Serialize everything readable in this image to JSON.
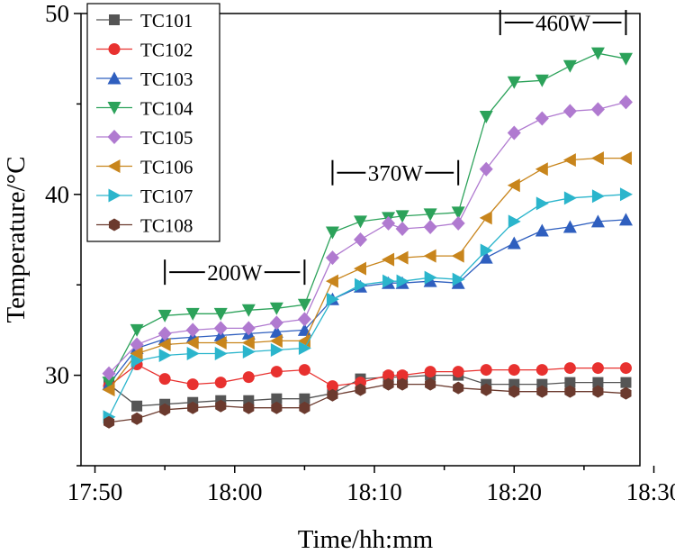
{
  "chart_data": {
    "type": "line",
    "title": "",
    "xlabel": "Time/hh:mm",
    "ylabel": "Temperature/°C",
    "xlim": [
      -1,
      39
    ],
    "ylim": [
      25,
      50
    ],
    "x_ticks": [
      0,
      10,
      20,
      30,
      40
    ],
    "x_tick_labels": [
      "17:50",
      "18:00",
      "18:10",
      "18:20",
      "18:30"
    ],
    "y_ticks": [
      30,
      40,
      50
    ],
    "y_tick_labels": [
      "30",
      "40",
      "50"
    ],
    "legend_position": "top-left",
    "annotations": [
      {
        "text": "200W",
        "x_from": 5,
        "x_to": 15,
        "y": 35.7
      },
      {
        "text": "370W",
        "x_from": 17,
        "x_to": 26,
        "y": 41.2
      },
      {
        "text": "460W",
        "x_from": 29,
        "x_to": 38,
        "y": 49.5
      }
    ],
    "x": [
      1,
      3,
      5,
      7,
      9,
      11,
      13,
      15,
      17,
      19,
      21,
      22,
      24,
      26,
      28,
      30,
      32,
      34,
      36,
      38
    ],
    "series": [
      {
        "name": "TC101",
        "color": "#555555",
        "marker": "square",
        "values": [
          29.5,
          28.3,
          28.4,
          28.5,
          28.6,
          28.6,
          28.7,
          28.7,
          29.0,
          29.8,
          29.9,
          29.9,
          30.0,
          30.0,
          29.5,
          29.5,
          29.5,
          29.6,
          29.6,
          29.6
        ]
      },
      {
        "name": "TC102",
        "color": "#e8312f",
        "marker": "circle",
        "values": [
          29.4,
          30.6,
          29.8,
          29.5,
          29.6,
          29.9,
          30.2,
          30.3,
          29.4,
          29.6,
          30.0,
          30.0,
          30.2,
          30.2,
          30.3,
          30.3,
          30.3,
          30.4,
          30.4,
          30.4
        ]
      },
      {
        "name": "TC103",
        "color": "#2f5fbf",
        "marker": "triangle-up",
        "values": [
          29.5,
          31.5,
          32.0,
          32.1,
          32.2,
          32.3,
          32.4,
          32.5,
          34.2,
          34.9,
          35.1,
          35.1,
          35.2,
          35.1,
          36.5,
          37.3,
          38.0,
          38.2,
          38.5,
          38.6
        ]
      },
      {
        "name": "TC104",
        "color": "#2ca25a",
        "marker": "triangle-down",
        "values": [
          29.6,
          32.5,
          33.3,
          33.4,
          33.4,
          33.6,
          33.7,
          33.9,
          37.9,
          38.5,
          38.7,
          38.8,
          38.9,
          39.0,
          44.3,
          46.2,
          46.3,
          47.1,
          47.8,
          47.5
        ]
      },
      {
        "name": "TC105",
        "color": "#b07ad0",
        "marker": "diamond",
        "values": [
          30.1,
          31.7,
          32.3,
          32.5,
          32.6,
          32.6,
          32.9,
          33.1,
          36.5,
          37.5,
          38.4,
          38.1,
          38.2,
          38.4,
          41.4,
          43.4,
          44.2,
          44.6,
          44.7,
          45.1
        ]
      },
      {
        "name": "TC106",
        "color": "#c8851c",
        "marker": "triangle-left",
        "values": [
          29.2,
          31.2,
          31.7,
          31.8,
          31.8,
          31.8,
          31.9,
          31.9,
          35.2,
          35.9,
          36.4,
          36.5,
          36.6,
          36.6,
          38.7,
          40.5,
          41.4,
          41.9,
          42.0,
          42.0
        ]
      },
      {
        "name": "TC107",
        "color": "#2bb5cc",
        "marker": "triangle-right",
        "values": [
          27.7,
          30.8,
          31.1,
          31.2,
          31.2,
          31.3,
          31.4,
          31.5,
          34.2,
          35.0,
          35.2,
          35.2,
          35.4,
          35.3,
          36.9,
          38.5,
          39.5,
          39.8,
          39.9,
          40.0
        ]
      },
      {
        "name": "TC108",
        "color": "#6b3a2e",
        "marker": "hexagon",
        "values": [
          27.4,
          27.6,
          28.1,
          28.2,
          28.3,
          28.2,
          28.2,
          28.2,
          28.9,
          29.2,
          29.5,
          29.5,
          29.5,
          29.3,
          29.2,
          29.1,
          29.1,
          29.1,
          29.1,
          29.0
        ]
      }
    ]
  }
}
